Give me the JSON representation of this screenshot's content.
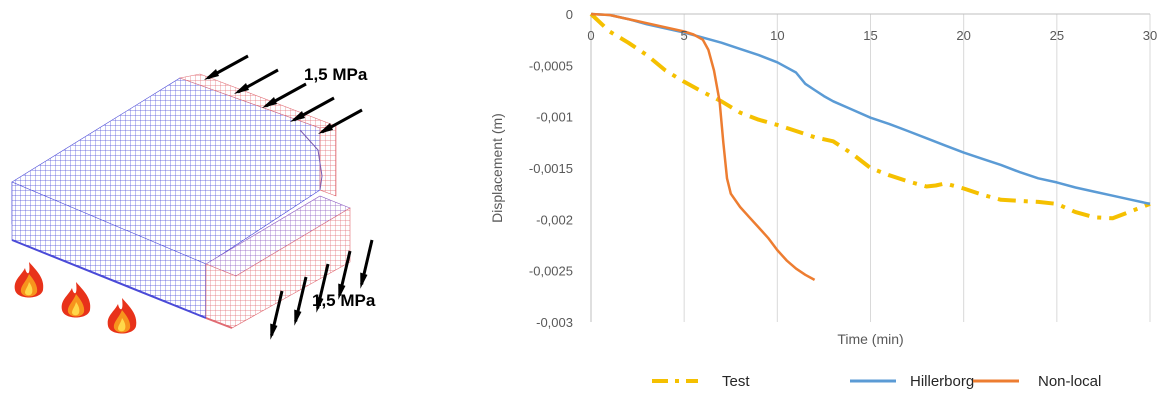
{
  "illustration": {
    "load_top": "1,5 MPa",
    "load_side": "1,5 MPa",
    "colors": {
      "mesh_blue": "#4a4ad8",
      "mesh_red": "#e06a72",
      "flame_orange": "#f7941d",
      "flame_red": "#e8321a"
    },
    "icons": [
      "arrow-icon",
      "flame-icon"
    ]
  },
  "chart_data": {
    "type": "line",
    "title": "",
    "xlabel": "Time (min)",
    "ylabel": "Displacement (m)",
    "xlim": [
      0,
      30
    ],
    "ylim": [
      -0.003,
      0
    ],
    "x_ticks": [
      0,
      5,
      10,
      15,
      20,
      25,
      30
    ],
    "x_tick_labels": [
      "0",
      "5",
      "10",
      "15",
      "20",
      "25",
      "30"
    ],
    "y_ticks": [
      0,
      -0.0005,
      -0.001,
      -0.0015,
      -0.002,
      -0.0025,
      -0.003
    ],
    "y_tick_labels": [
      "0",
      "-0,0005",
      "-0,001",
      "-0,0015",
      "-0,002",
      "-0,0025",
      "-0,003"
    ],
    "grid": "vertical",
    "legend_position": "bottom",
    "series": [
      {
        "name": "Test",
        "color": "#f5c000",
        "style": "dash-dot",
        "x": [
          0,
          1,
          2,
          3,
          4,
          5,
          6,
          7,
          8,
          9,
          10,
          11,
          12,
          13,
          14,
          15,
          16,
          17,
          18,
          18.5,
          19,
          20,
          21,
          22,
          23,
          24,
          25,
          26,
          27,
          28,
          29,
          30
        ],
        "y": [
          0,
          -0.00017,
          -0.00028,
          -0.0004,
          -0.00055,
          -0.00066,
          -0.00076,
          -0.00085,
          -0.00096,
          -0.00103,
          -0.00108,
          -0.00114,
          -0.0012,
          -0.00124,
          -0.00136,
          -0.0015,
          -0.00157,
          -0.00163,
          -0.00168,
          -0.00167,
          -0.00165,
          -0.0017,
          -0.00176,
          -0.00181,
          -0.00182,
          -0.00183,
          -0.00185,
          -0.00193,
          -0.00198,
          -0.00199,
          -0.00192,
          -0.00185
        ]
      },
      {
        "name": "Hillerborg",
        "color": "#5b9bd5",
        "style": "solid",
        "x": [
          0,
          1,
          2,
          3,
          4,
          5,
          6,
          7,
          8,
          9,
          10,
          11,
          11.5,
          12,
          12.5,
          13,
          14,
          15,
          16,
          17,
          18,
          19,
          20,
          21,
          22,
          23,
          24,
          25,
          26,
          27,
          28,
          29,
          30
        ],
        "y": [
          0,
          -1e-05,
          -5e-05,
          -0.0001,
          -0.00014,
          -0.00018,
          -0.00023,
          -0.00028,
          -0.00034,
          -0.0004,
          -0.00047,
          -0.00057,
          -0.00068,
          -0.00074,
          -0.0008,
          -0.00085,
          -0.00093,
          -0.00101,
          -0.00107,
          -0.00114,
          -0.00121,
          -0.00128,
          -0.00135,
          -0.00141,
          -0.00147,
          -0.00154,
          -0.0016,
          -0.00164,
          -0.00169,
          -0.00173,
          -0.00177,
          -0.00181,
          -0.00185
        ]
      },
      {
        "name": "Non-local",
        "color": "#ed7d31",
        "style": "solid",
        "x": [
          0,
          1,
          2,
          3,
          4,
          5,
          5.5,
          6,
          6.3,
          6.6,
          6.9,
          7.1,
          7.3,
          7.5,
          8,
          8.5,
          9,
          9.5,
          10,
          10.5,
          11,
          11.5,
          12
        ],
        "y": [
          0,
          -1e-05,
          -5e-05,
          -9e-05,
          -0.00013,
          -0.00017,
          -0.0002,
          -0.00025,
          -0.00035,
          -0.00055,
          -0.00085,
          -0.00125,
          -0.0016,
          -0.00175,
          -0.00188,
          -0.00198,
          -0.00208,
          -0.00218,
          -0.0023,
          -0.0024,
          -0.00248,
          -0.00254,
          -0.00259
        ]
      }
    ]
  }
}
